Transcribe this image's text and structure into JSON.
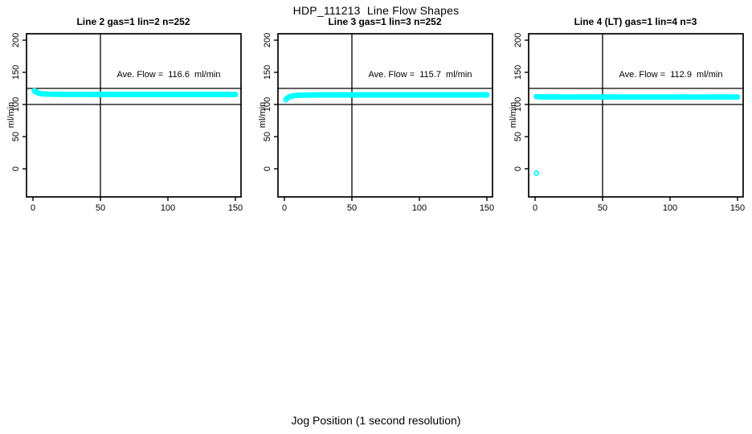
{
  "page": {
    "title": "HDP_111213  Line Flow Shapes",
    "outer_xlabel": "Jog Position (1 second resolution)"
  },
  "colors": {
    "points": "#00ffff",
    "axis": "#000000",
    "background": "#ffffff"
  },
  "axes": {
    "x_ticks": [
      0,
      50,
      100,
      150
    ],
    "y_ticks": [
      0,
      50,
      100,
      150,
      200
    ],
    "x_tick_labels": [
      "0",
      "50",
      "100",
      "150"
    ],
    "y_tick_labels": [
      "0",
      "50",
      "100",
      "150",
      "200"
    ]
  },
  "chart_data": [
    {
      "type": "scatter",
      "title": "Line 2 gas=1 lin=2 n=252",
      "ylabel": "ml/min",
      "annotation": "Ave. Flow =  116.6  ml/min",
      "ave_flow_ml_min": 116.6,
      "n": 252,
      "xlim": [
        -5,
        154
      ],
      "ylim": [
        -44,
        210
      ],
      "ref_lines_h": [
        100,
        125
      ],
      "ref_line_v": 50,
      "x_range": [
        1,
        150
      ],
      "x_step": 1,
      "series_anchors": [
        [
          1,
          121.5
        ],
        [
          2,
          119.8
        ],
        [
          4,
          117.8
        ],
        [
          7,
          116.6
        ],
        [
          12,
          116.0
        ],
        [
          25,
          115.7
        ],
        [
          60,
          115.6
        ],
        [
          150,
          115.5
        ]
      ],
      "outliers": []
    },
    {
      "type": "scatter",
      "title": "Line 3 gas=1 lin=3 n=252",
      "ylabel": "ml/min",
      "annotation": "Ave. Flow =  115.7  ml/min",
      "ave_flow_ml_min": 115.7,
      "n": 252,
      "xlim": [
        -5,
        154
      ],
      "ylim": [
        -44,
        210
      ],
      "ref_lines_h": [
        100,
        125
      ],
      "ref_line_v": 50,
      "x_range": [
        1,
        150
      ],
      "x_step": 1,
      "series_anchors": [
        [
          1,
          107.5
        ],
        [
          2,
          109.8
        ],
        [
          4,
          112.2
        ],
        [
          7,
          113.8
        ],
        [
          12,
          114.5
        ],
        [
          25,
          114.9
        ],
        [
          60,
          115.0
        ],
        [
          150,
          115.0
        ]
      ],
      "outliers": []
    },
    {
      "type": "scatter",
      "title": "Line 4 (LT) gas=1 lin=4 n=3",
      "ylabel": "ml/min",
      "annotation": "Ave. Flow =  112.9  ml/min",
      "ave_flow_ml_min": 112.9,
      "n": 3,
      "xlim": [
        -5,
        154
      ],
      "ylim": [
        -44,
        210
      ],
      "ref_lines_h": [
        100,
        125
      ],
      "ref_line_v": 50,
      "x_range": [
        1,
        150
      ],
      "x_step": 1,
      "series_anchors": [
        [
          1,
          112.3
        ],
        [
          4,
          111.9
        ],
        [
          10,
          111.7
        ],
        [
          150,
          111.6
        ]
      ],
      "outliers": [
        [
          1,
          -7
        ]
      ]
    }
  ]
}
